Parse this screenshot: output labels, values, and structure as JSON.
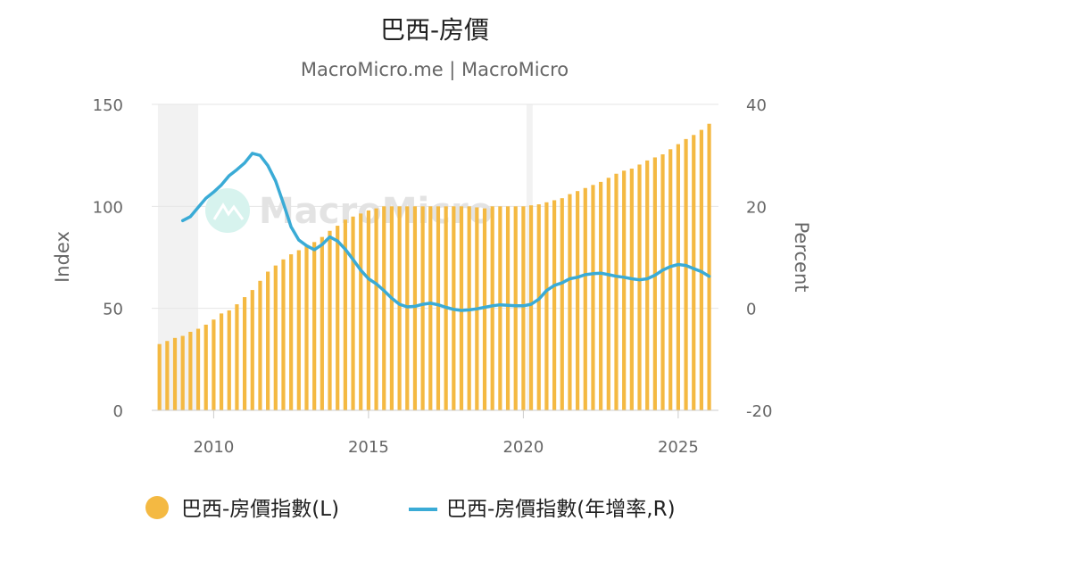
{
  "chart_data": {
    "type": "bar+line",
    "title": "巴西-房價",
    "subtitle": "MacroMicro.me | MacroMicro",
    "watermark": "MacroMicro",
    "ylabel_left": "Index",
    "ylabel_right": "Percent",
    "ylim_left": [
      0,
      150
    ],
    "ylim_right": [
      -20,
      40
    ],
    "y_ticks_left": [
      "0",
      "50",
      "100",
      "150"
    ],
    "y_ticks_right": [
      "-20",
      "0",
      "20",
      "40"
    ],
    "xlim": [
      2008.0,
      2026.3
    ],
    "x_ticks": [
      "2010",
      "2015",
      "2020",
      "2025"
    ],
    "grid": "horizontal",
    "legend_position": "bottom",
    "shaded_periods": [
      [
        2008.2,
        2009.5
      ],
      [
        2020.1,
        2020.3
      ]
    ],
    "colors": {
      "bar": "#f4b942",
      "line": "#3aabd6",
      "shade": "#f2f2f2"
    },
    "series": [
      {
        "name": "巴西-房價指數(L)",
        "kind": "bar",
        "axis": "left",
        "x": [
          2008.25,
          2008.5,
          2008.75,
          2009.0,
          2009.25,
          2009.5,
          2009.75,
          2010.0,
          2010.25,
          2010.5,
          2010.75,
          2011.0,
          2011.25,
          2011.5,
          2011.75,
          2012.0,
          2012.25,
          2012.5,
          2012.75,
          2013.0,
          2013.25,
          2013.5,
          2013.75,
          2014.0,
          2014.25,
          2014.5,
          2014.75,
          2015.0,
          2015.25,
          2015.5,
          2015.75,
          2016.0,
          2016.25,
          2016.5,
          2016.75,
          2017.0,
          2017.25,
          2017.5,
          2017.75,
          2018.0,
          2018.25,
          2018.5,
          2018.75,
          2019.0,
          2019.25,
          2019.5,
          2019.75,
          2020.0,
          2020.25,
          2020.5,
          2020.75,
          2021.0,
          2021.25,
          2021.5,
          2021.75,
          2022.0,
          2022.25,
          2022.5,
          2022.75,
          2023.0,
          2023.25,
          2023.5,
          2023.75,
          2024.0,
          2024.25,
          2024.5,
          2024.75,
          2025.0,
          2025.25,
          2025.5,
          2025.75,
          2026.0
        ],
        "values": [
          32.5,
          34,
          35.5,
          36.5,
          38.5,
          40,
          42,
          44.5,
          47.5,
          49,
          52,
          55.5,
          59,
          63.5,
          68,
          71,
          74,
          76.5,
          78.5,
          80.5,
          82.5,
          85,
          88,
          90.5,
          93.5,
          95,
          96.5,
          98,
          99,
          100,
          100,
          100,
          100,
          100,
          100,
          100,
          100,
          100,
          100,
          100,
          100,
          99.5,
          99,
          100,
          100,
          100,
          100,
          100,
          100.5,
          101,
          102,
          103,
          104,
          106,
          107.5,
          109,
          110.5,
          112,
          114,
          116,
          117.5,
          118.5,
          120.5,
          122.5,
          124,
          125.5,
          128,
          130.5,
          133,
          135,
          137.5,
          140.5
        ]
      },
      {
        "name": "巴西-房價指數(年增率,R)",
        "kind": "line",
        "axis": "right",
        "x": [
          2009.0,
          2009.25,
          2009.5,
          2009.75,
          2010.0,
          2010.25,
          2010.5,
          2010.75,
          2011.0,
          2011.25,
          2011.5,
          2011.75,
          2012.0,
          2012.25,
          2012.5,
          2012.75,
          2013.0,
          2013.25,
          2013.5,
          2013.75,
          2014.0,
          2014.25,
          2014.5,
          2014.75,
          2015.0,
          2015.25,
          2015.5,
          2015.75,
          2016.0,
          2016.25,
          2016.5,
          2016.75,
          2017.0,
          2017.25,
          2017.5,
          2017.75,
          2018.0,
          2018.25,
          2018.5,
          2018.75,
          2019.0,
          2019.25,
          2019.5,
          2019.75,
          2020.0,
          2020.25,
          2020.5,
          2020.75,
          2021.0,
          2021.25,
          2021.5,
          2021.75,
          2022.0,
          2022.25,
          2022.5,
          2022.75,
          2023.0,
          2023.25,
          2023.5,
          2023.75,
          2024.0,
          2024.25,
          2024.5,
          2024.75,
          2025.0,
          2025.25,
          2025.5,
          2025.75,
          2026.0
        ],
        "values": [
          17.2,
          18,
          19.8,
          21.6,
          22.8,
          24.2,
          26,
          27.2,
          28.5,
          30.4,
          30,
          28,
          25,
          20.6,
          16,
          13.4,
          12.3,
          11.5,
          12.5,
          14,
          13.2,
          11.6,
          9.6,
          7.5,
          5.8,
          4.8,
          3.5,
          2,
          0.8,
          0.3,
          0.4,
          0.8,
          1,
          0.7,
          0.2,
          -0.2,
          -0.4,
          -0.3,
          -0.1,
          0.2,
          0.5,
          0.7,
          0.6,
          0.5,
          0.5,
          0.8,
          1.8,
          3.5,
          4.5,
          5,
          5.8,
          6.1,
          6.6,
          6.8,
          6.9,
          6.6,
          6.3,
          6.1,
          5.8,
          5.6,
          5.8,
          6.5,
          7.5,
          8.2,
          8.6,
          8.4,
          7.8,
          7.2,
          6.3
        ]
      }
    ]
  }
}
